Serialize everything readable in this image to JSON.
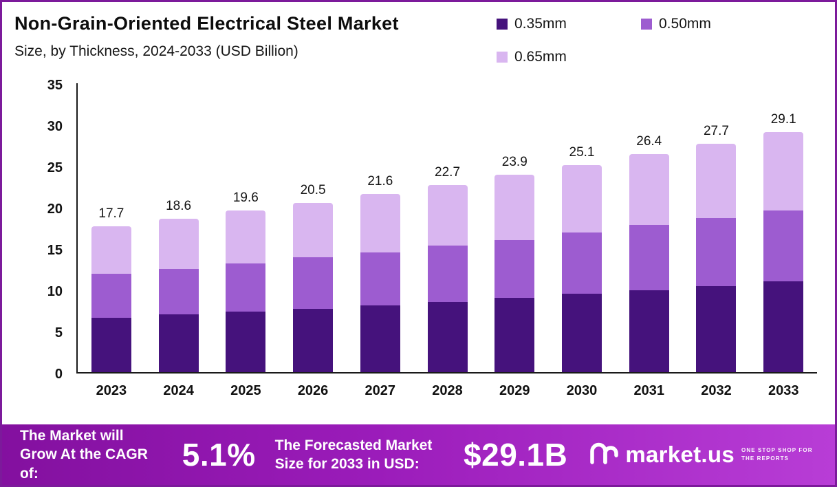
{
  "header": {
    "title_line1": "Non-Grain-Oriented Electrical Steel Market",
    "title_line2": "Size, by Thickness, 2024-2033 (USD Billion)"
  },
  "chart_data": {
    "type": "bar",
    "stacked": true,
    "title": "Non-Grain-Oriented Electrical Steel Market Size, by Thickness, 2024-2033 (USD Billion)",
    "xlabel": "",
    "ylabel": "",
    "ylim": [
      0,
      35
    ],
    "yticks": [
      0,
      5,
      10,
      15,
      20,
      25,
      30,
      35
    ],
    "grid": false,
    "legend_position": "top-right",
    "categories": [
      "2023",
      "2024",
      "2025",
      "2026",
      "2027",
      "2028",
      "2029",
      "2030",
      "2031",
      "2032",
      "2033"
    ],
    "series": [
      {
        "name": "0.35mm",
        "color": "#45127c",
        "values": [
          6.6,
          7.0,
          7.3,
          7.7,
          8.1,
          8.5,
          9.0,
          9.5,
          9.9,
          10.4,
          11.0
        ]
      },
      {
        "name": "0.50mm",
        "color": "#9d5cd0",
        "values": [
          5.3,
          5.5,
          5.9,
          6.2,
          6.4,
          6.8,
          7.0,
          7.4,
          7.9,
          8.3,
          8.6
        ]
      },
      {
        "name": "0.65mm",
        "color": "#d9b6f0",
        "values": [
          5.8,
          6.1,
          6.4,
          6.6,
          7.1,
          7.4,
          7.9,
          8.2,
          8.6,
          9.0,
          9.5
        ]
      }
    ],
    "totals": [
      "17.7",
      "18.6",
      "19.6",
      "20.5",
      "21.6",
      "22.7",
      "23.9",
      "25.1",
      "26.4",
      "27.7",
      "29.1"
    ]
  },
  "footer": {
    "cagr_label": "The Market will Grow At the CAGR of:",
    "cagr_value": "5.1%",
    "forecast_label": "The Forecasted Market Size for 2033 in USD:",
    "forecast_value": "$29.1B",
    "brand": "market.us",
    "brand_tagline": "One Stop Shop For The Reports"
  },
  "colors": {
    "accent_border": "#7c1a9b",
    "footer_gradient_start": "#83109f",
    "footer_gradient_end": "#b83dd6",
    "series_035mm": "#45127c",
    "series_050mm": "#9d5cd0",
    "series_065mm": "#d9b6f0"
  }
}
